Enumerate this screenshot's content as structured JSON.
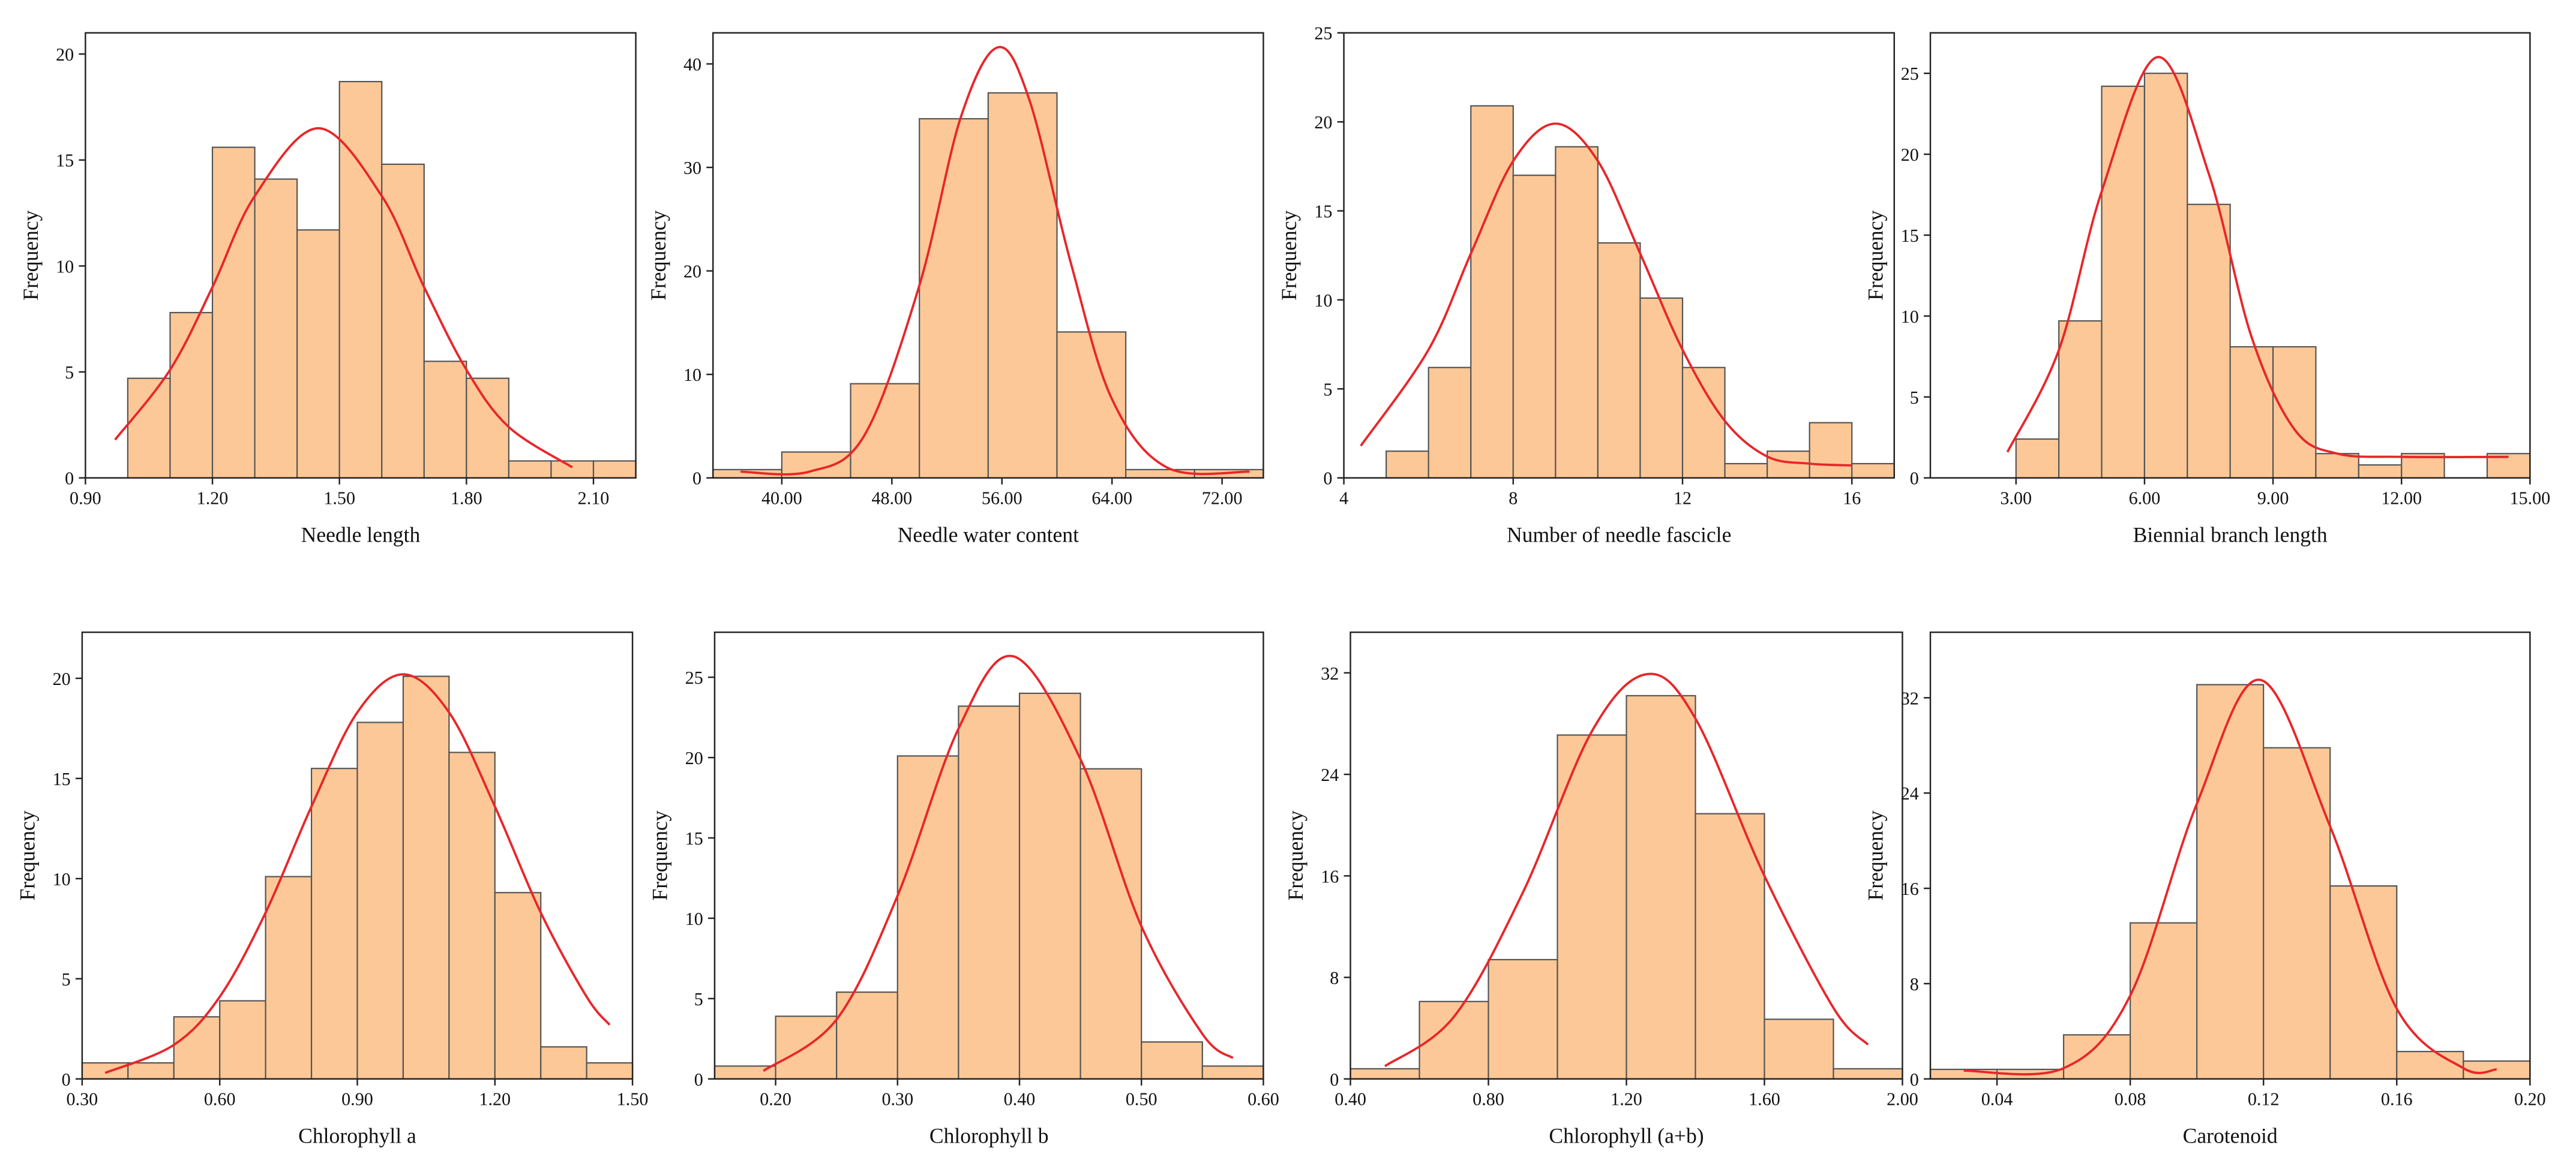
{
  "chart_data": [
    {
      "type": "histogram",
      "xlabel": "Needle length",
      "ylabel": "Frequency",
      "bins": [
        1.0,
        1.1,
        1.2,
        1.3,
        1.4,
        1.5,
        1.6,
        1.7,
        1.8,
        1.9,
        2.0,
        2.1,
        2.2
      ],
      "values": [
        4.7,
        7.8,
        15.6,
        14.1,
        11.7,
        18.7,
        14.8,
        5.5,
        4.7,
        0.8,
        0.8,
        0.8
      ],
      "color": "#fdc897",
      "curve": {
        "color": "#e8262a",
        "x": [
          0.97,
          1.1,
          1.2,
          1.3,
          1.45,
          1.6,
          1.7,
          1.8,
          1.9,
          2.05
        ],
        "y": [
          1.8,
          5.1,
          9.0,
          13.3,
          16.5,
          13.3,
          9.0,
          5.1,
          2.4,
          0.5
        ]
      },
      "xlim": [
        0.9,
        2.2
      ],
      "xticks": [
        {
          "value": 0.9,
          "label": "0.90"
        },
        {
          "value": 1.2,
          "label": "1.20"
        },
        {
          "value": 1.5,
          "label": "1.50"
        },
        {
          "value": 1.8,
          "label": "1.80"
        },
        {
          "value": 2.1,
          "label": "2.10"
        }
      ],
      "ylim": [
        0,
        21
      ],
      "yticks": [
        0,
        5,
        10,
        15,
        20
      ]
    },
    {
      "type": "histogram",
      "xlabel": "Needle water content",
      "ylabel": "Frequency",
      "bins": [
        35,
        40,
        45,
        50,
        55,
        60,
        65,
        70,
        75
      ],
      "values": [
        0.8,
        2.5,
        9.1,
        34.7,
        37.2,
        14.1,
        0.8,
        0.8
      ],
      "color": "#fdc897",
      "curve": {
        "color": "#e8262a",
        "x": [
          37,
          42,
          46,
          50,
          53,
          55.7,
          58,
          61,
          64,
          68,
          74
        ],
        "y": [
          0.6,
          0.6,
          4.1,
          18.6,
          34.8,
          41.6,
          36.5,
          20.8,
          7.6,
          1.0,
          0.6
        ]
      },
      "xlim": [
        35,
        75
      ],
      "xticks": [
        {
          "value": 40,
          "label": "40.00"
        },
        {
          "value": 48,
          "label": "48.00"
        },
        {
          "value": 56,
          "label": "56.00"
        },
        {
          "value": 64,
          "label": "64.00"
        },
        {
          "value": 72,
          "label": "72.00"
        }
      ],
      "ylim": [
        0,
        43
      ],
      "yticks": [
        0,
        10,
        20,
        30,
        40
      ]
    },
    {
      "type": "histogram",
      "xlabel": "Number of needle fascicle",
      "ylabel": "Frequency",
      "bins": [
        5,
        6,
        7,
        8,
        9,
        10,
        11,
        12,
        13,
        14,
        15,
        16,
        17
      ],
      "values": [
        1.5,
        6.2,
        20.9,
        17.0,
        18.6,
        13.2,
        10.1,
        6.2,
        0.8,
        1.5,
        3.1,
        0.8
      ],
      "color": "#fdc897",
      "curve": {
        "color": "#e8262a",
        "x": [
          4.4,
          6,
          7,
          8,
          9,
          10,
          11,
          12,
          13,
          14,
          15,
          16
        ],
        "y": [
          1.8,
          7.2,
          12.6,
          17.8,
          19.9,
          17.8,
          12.6,
          7.2,
          3.2,
          1.2,
          0.8,
          0.7
        ]
      },
      "xlim": [
        4,
        17
      ],
      "xticks": [
        4,
        8,
        12,
        16
      ],
      "ylim": [
        0,
        25
      ],
      "yticks": [
        0,
        5,
        10,
        15,
        20,
        25
      ]
    },
    {
      "type": "histogram",
      "xlabel": "Biennial branch length",
      "ylabel": "Frequency",
      "bins": [
        3,
        4,
        5,
        6,
        7,
        8,
        9,
        10,
        11,
        12,
        13,
        14,
        15
      ],
      "values": [
        2.4,
        9.7,
        24.2,
        25.0,
        16.9,
        8.1,
        8.1,
        1.5,
        0.8,
        1.5,
        0,
        1.5
      ],
      "color": "#fdc897",
      "curve": {
        "color": "#e8262a",
        "x": [
          2.8,
          4,
          5,
          6.3,
          7.5,
          8.5,
          9.5,
          10.5,
          12,
          14.5
        ],
        "y": [
          1.6,
          7.9,
          17.7,
          26,
          18.8,
          8.7,
          3.0,
          1.5,
          1.3,
          1.3
        ]
      },
      "xlim": [
        1,
        15
      ],
      "xticks": [
        {
          "value": 3,
          "label": "3.00"
        },
        {
          "value": 6,
          "label": "6.00"
        },
        {
          "value": 9,
          "label": "9.00"
        },
        {
          "value": 12,
          "label": "12.00"
        },
        {
          "value": 15,
          "label": "15.00"
        }
      ],
      "ylim": [
        0,
        27.5
      ],
      "yticks": [
        0,
        5,
        10,
        15,
        20,
        25
      ]
    },
    {
      "type": "histogram",
      "xlabel": "Chlorophyll a",
      "ylabel": "Frequency",
      "bins": [
        0.3,
        0.4,
        0.5,
        0.6,
        0.7,
        0.8,
        0.9,
        1.0,
        1.1,
        1.2,
        1.3,
        1.4,
        1.5
      ],
      "values": [
        0.8,
        0.8,
        3.1,
        3.9,
        10.1,
        15.5,
        17.8,
        20.1,
        16.3,
        9.3,
        1.6,
        0.8
      ],
      "color": "#fdc897",
      "curve": {
        "color": "#e8262a",
        "x": [
          0.35,
          0.5,
          0.6,
          0.7,
          0.8,
          0.9,
          1.0,
          1.1,
          1.2,
          1.3,
          1.4,
          1.45
        ],
        "y": [
          0.3,
          1.7,
          4.1,
          8.3,
          13.6,
          18.3,
          20.2,
          18.3,
          13.6,
          8.3,
          4.1,
          2.7
        ]
      },
      "xlim": [
        0.3,
        1.5
      ],
      "xticks": [
        {
          "value": 0.3,
          "label": "0.30"
        },
        {
          "value": 0.6,
          "label": "0.60"
        },
        {
          "value": 0.9,
          "label": "0.90"
        },
        {
          "value": 1.2,
          "label": "1.20"
        },
        {
          "value": 1.5,
          "label": "1.50"
        }
      ],
      "ylim": [
        0,
        22.3
      ],
      "yticks": [
        0,
        5,
        10,
        15,
        20
      ]
    },
    {
      "type": "histogram",
      "xlabel": "Chlorophyll b",
      "ylabel": "Frequency",
      "bins": [
        0.15,
        0.2,
        0.25,
        0.3,
        0.35,
        0.4,
        0.45,
        0.5,
        0.55,
        0.6
      ],
      "values": [
        0.8,
        3.9,
        5.4,
        20.1,
        23.2,
        24.0,
        19.3,
        2.3,
        0.8
      ],
      "color": "#fdc897",
      "curve": {
        "color": "#e8262a",
        "x": [
          0.19,
          0.25,
          0.3,
          0.35,
          0.395,
          0.45,
          0.5,
          0.55,
          0.575
        ],
        "y": [
          0.5,
          3.7,
          11.4,
          21.8,
          26.3,
          19.9,
          9.5,
          2.8,
          1.3
        ]
      },
      "xlim": [
        0.15,
        0.6
      ],
      "xticks": [
        {
          "value": 0.2,
          "label": "0.20"
        },
        {
          "value": 0.3,
          "label": "0.30"
        },
        {
          "value": 0.4,
          "label": "0.40"
        },
        {
          "value": 0.5,
          "label": "0.50"
        },
        {
          "value": 0.6,
          "label": "0.60"
        }
      ],
      "ylim": [
        0,
        27.8
      ],
      "yticks": [
        0,
        5,
        10,
        15,
        20,
        25
      ]
    },
    {
      "type": "histogram",
      "xlabel": "Chlorophyll (a+b)",
      "ylabel": "Frequency",
      "bins": [
        0.4,
        0.6,
        0.8,
        1.0,
        1.2,
        1.4,
        1.6,
        1.8,
        2.0
      ],
      "values": [
        0.8,
        6.1,
        9.4,
        27.1,
        30.2,
        20.9,
        4.7,
        0.8
      ],
      "color": "#fdc897",
      "curve": {
        "color": "#e8262a",
        "x": [
          0.5,
          0.7,
          0.9,
          1.1,
          1.26,
          1.4,
          1.6,
          1.8,
          1.9
        ],
        "y": [
          1.0,
          4.9,
          14.7,
          27.4,
          31.9,
          28.4,
          16.0,
          5.6,
          2.7
        ]
      },
      "xlim": [
        0.4,
        2.0
      ],
      "xticks": [
        {
          "value": 0.4,
          "label": "0.40"
        },
        {
          "value": 0.8,
          "label": "0.80"
        },
        {
          "value": 1.2,
          "label": "1.20"
        },
        {
          "value": 1.6,
          "label": "1.60"
        },
        {
          "value": 2.0,
          "label": "2.00"
        }
      ],
      "ylim": [
        0,
        35.2
      ],
      "yticks": [
        0,
        8,
        16,
        24,
        32
      ]
    },
    {
      "type": "histogram",
      "xlabel": "Carotenoid",
      "ylabel": "Frequency",
      "bins": [
        0.02,
        0.04,
        0.06,
        0.08,
        0.1,
        0.12,
        0.14,
        0.16,
        0.18,
        0.2
      ],
      "values": [
        0.8,
        0.8,
        3.7,
        13.1,
        33.1,
        27.8,
        16.2,
        2.3,
        1.5
      ],
      "color": "#fdc897",
      "curve": {
        "color": "#e8262a",
        "x": [
          0.03,
          0.06,
          0.08,
          0.1,
          0.119,
          0.14,
          0.16,
          0.18,
          0.19
        ],
        "y": [
          0.7,
          0.9,
          7.0,
          23.1,
          33.5,
          21.2,
          5.9,
          0.9,
          0.8
        ]
      },
      "xlim": [
        0.02,
        0.2
      ],
      "xticks": [
        {
          "value": 0.04,
          "label": "0.04"
        },
        {
          "value": 0.08,
          "label": "0.08"
        },
        {
          "value": 0.12,
          "label": "0.12"
        },
        {
          "value": 0.16,
          "label": "0.16"
        },
        {
          "value": 0.2,
          "label": "0.20"
        }
      ],
      "ylim": [
        0,
        37.5
      ],
      "yticks": [
        0,
        8,
        16,
        24,
        32
      ]
    }
  ]
}
